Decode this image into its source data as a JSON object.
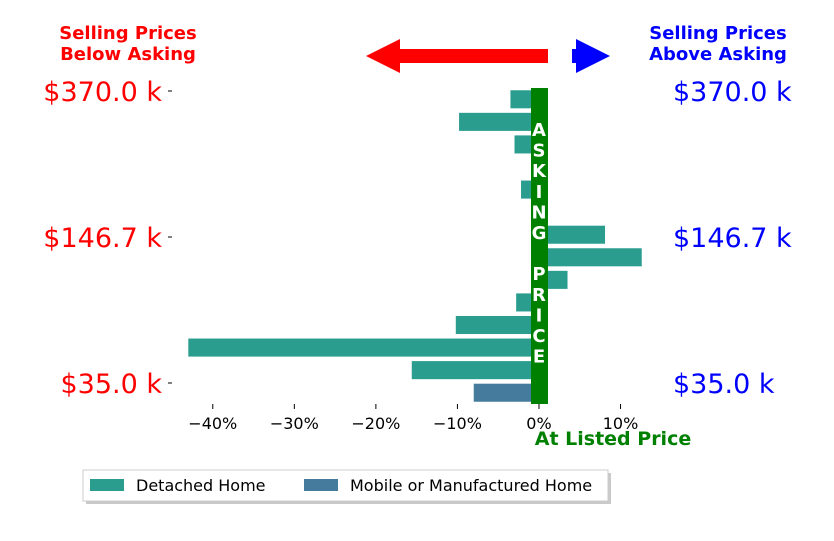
{
  "chart_data": {
    "type": "bar",
    "orientation": "horizontal",
    "title_left": [
      "Selling Prices",
      "Below Asking"
    ],
    "title_right": [
      "Selling Prices",
      "Above Asking"
    ],
    "center_label": "ASKING PRICE",
    "xlabel": "At Listed Price",
    "xlim": [
      -45,
      13
    ],
    "xticks": [
      -40,
      -30,
      -20,
      -10,
      0,
      10
    ],
    "xtick_labels": [
      "−40%",
      "−30%",
      "−20%",
      "−10%",
      "0%",
      "10%"
    ],
    "ytick_labels_left": [
      "$370.0 k",
      "$146.7 k",
      "$35.0 k"
    ],
    "ytick_labels_right": [
      "$370.0 k",
      "$146.7 k",
      "$35.0 k"
    ],
    "series": [
      {
        "name": "Detached Home",
        "color": "#2a9d8f"
      },
      {
        "name": "Mobile or Manufactured Home",
        "color": "#457b9d"
      }
    ],
    "bars": [
      {
        "series": 0,
        "value": -3.5
      },
      {
        "series": 0,
        "value": -9.8
      },
      {
        "series": 0,
        "value": -3.0
      },
      {
        "series": 0,
        "value": 0
      },
      {
        "series": 0,
        "value": -2.2
      },
      {
        "series": 0,
        "value": 0
      },
      {
        "series": 0,
        "value": 8.1
      },
      {
        "series": 0,
        "value": 12.6
      },
      {
        "series": 0,
        "value": 3.5
      },
      {
        "series": 0,
        "value": -2.8
      },
      {
        "series": 0,
        "value": -10.2
      },
      {
        "series": 0,
        "value": -43.0
      },
      {
        "series": 0,
        "value": -15.6
      },
      {
        "series": 1,
        "value": -8.0
      }
    ],
    "colors": {
      "below": "#ff0000",
      "above": "#0000ff",
      "asking": "#008000"
    },
    "legend_position": "bottom-left",
    "grid": false
  }
}
